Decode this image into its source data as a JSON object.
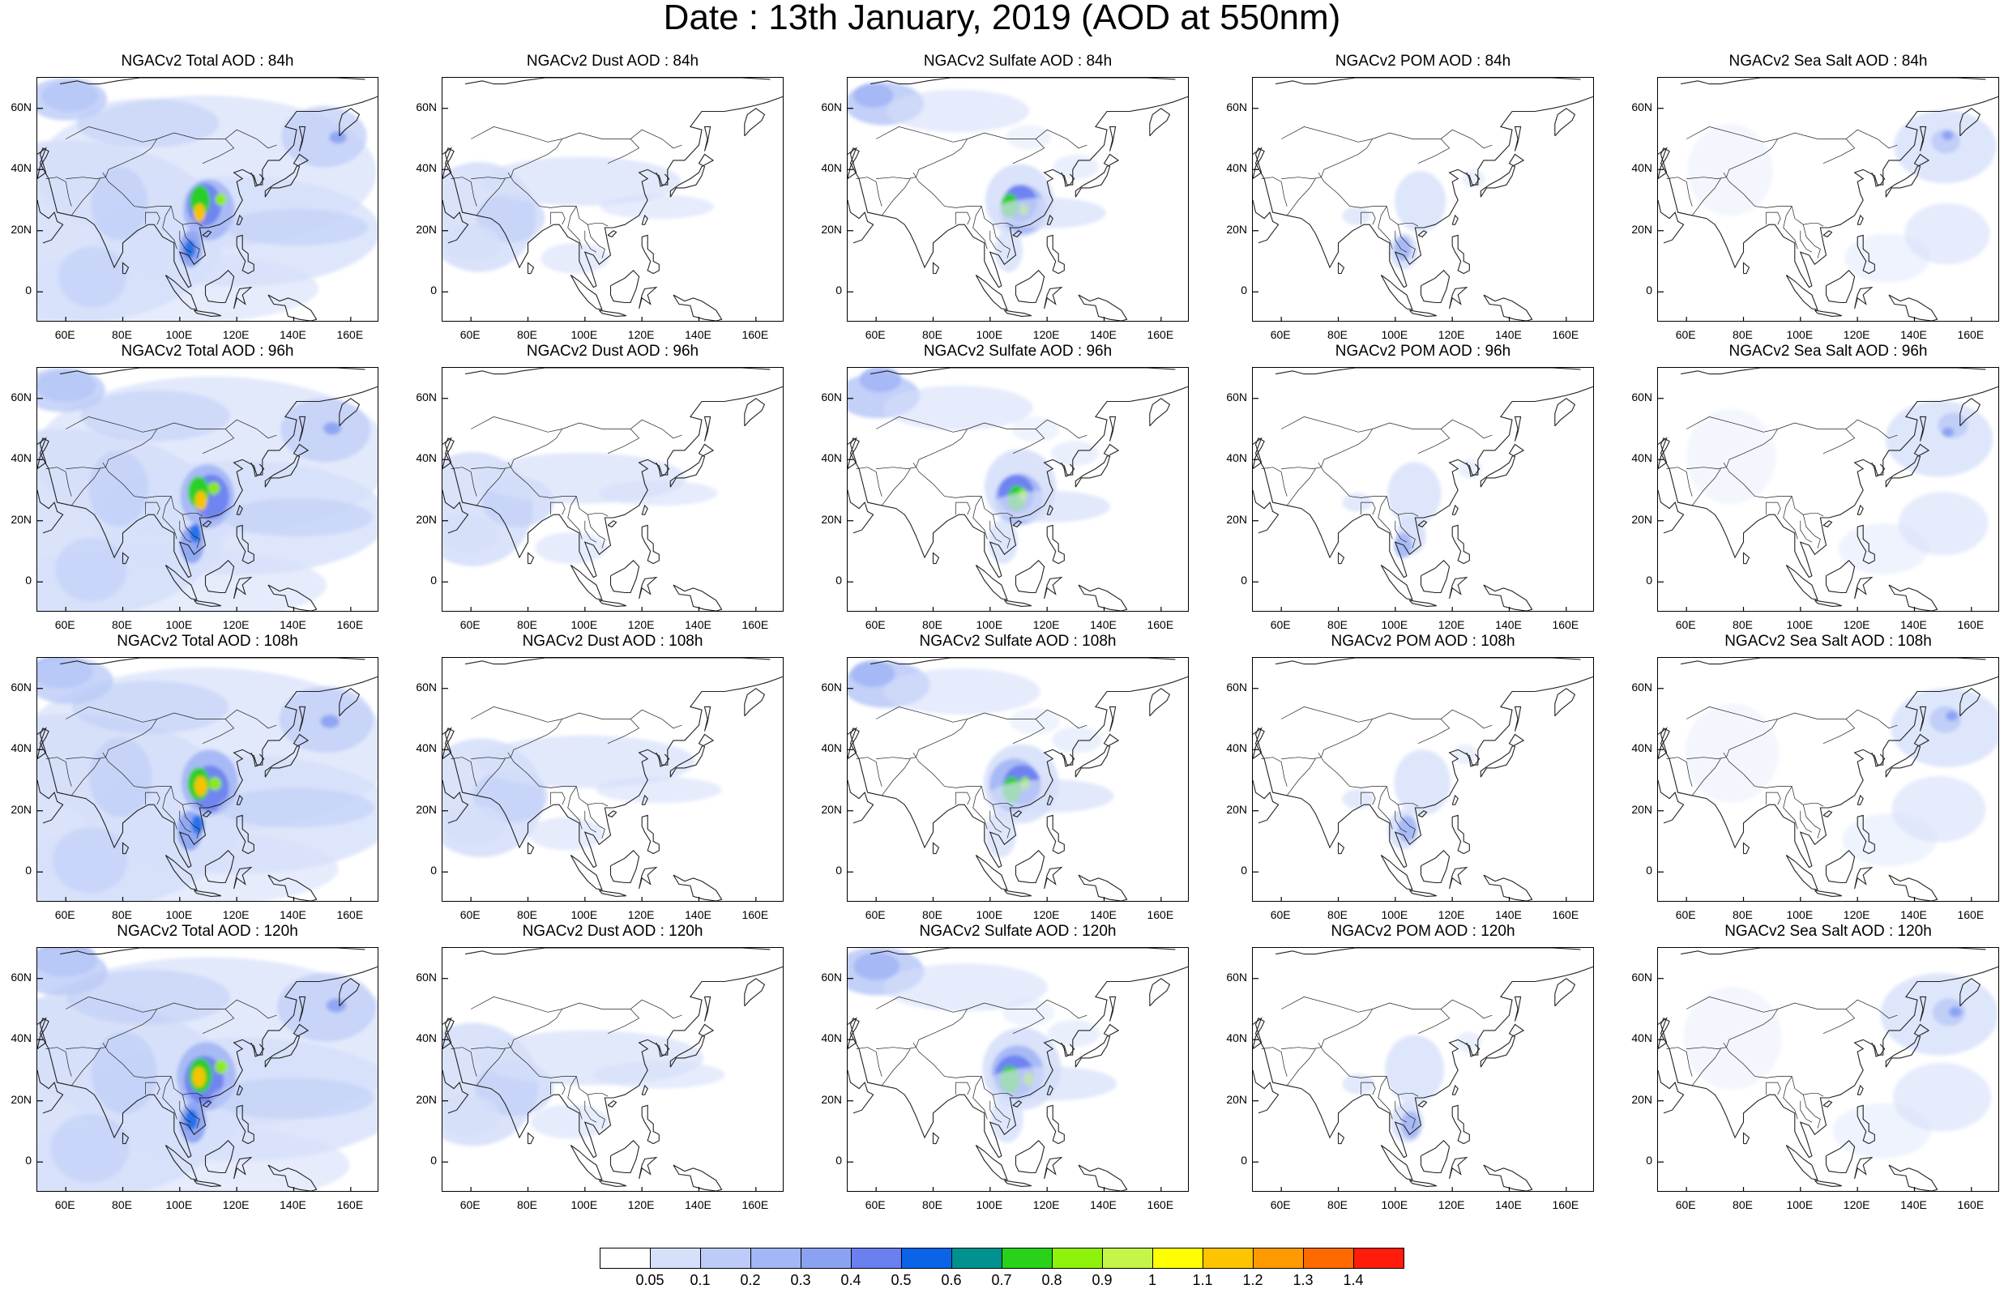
{
  "title": "Date : 13th January, 2019 (AOD at 550nm)",
  "map": {
    "lat_ticks": [
      "0",
      "20N",
      "40N",
      "60N"
    ],
    "lon_ticks": [
      "60E",
      "80E",
      "100E",
      "120E",
      "140E",
      "160E"
    ]
  },
  "panels": [
    [
      {
        "title": "NGACv2 Total AOD : 84h",
        "kind": "total"
      },
      {
        "title": "NGACv2 Dust AOD : 84h",
        "kind": "dust"
      },
      {
        "title": "NGACv2 Sulfate AOD : 84h",
        "kind": "sulfate"
      },
      {
        "title": "NGACv2 POM AOD : 84h",
        "kind": "pom"
      },
      {
        "title": "NGACv2 Sea Salt AOD : 84h",
        "kind": "seasalt"
      }
    ],
    [
      {
        "title": "NGACv2 Total AOD : 96h",
        "kind": "total"
      },
      {
        "title": "NGACv2 Dust AOD : 96h",
        "kind": "dust"
      },
      {
        "title": "NGACv2 Sulfate AOD : 96h",
        "kind": "sulfate"
      },
      {
        "title": "NGACv2 POM AOD : 96h",
        "kind": "pom"
      },
      {
        "title": "NGACv2 Sea Salt AOD : 96h",
        "kind": "seasalt"
      }
    ],
    [
      {
        "title": "NGACv2 Total AOD : 108h",
        "kind": "total"
      },
      {
        "title": "NGACv2 Dust AOD : 108h",
        "kind": "dust"
      },
      {
        "title": "NGACv2 Sulfate AOD : 108h",
        "kind": "sulfate"
      },
      {
        "title": "NGACv2 POM AOD : 108h",
        "kind": "pom"
      },
      {
        "title": "NGACv2 Sea Salt AOD : 108h",
        "kind": "seasalt"
      }
    ],
    [
      {
        "title": "NGACv2 Total AOD : 120h",
        "kind": "total"
      },
      {
        "title": "NGACv2 Dust AOD : 120h",
        "kind": "dust"
      },
      {
        "title": "NGACv2 Sulfate AOD : 120h",
        "kind": "sulfate"
      },
      {
        "title": "NGACv2 POM AOD : 120h",
        "kind": "pom"
      },
      {
        "title": "NGACv2 Sea Salt  AOD : 120h",
        "kind": "seasalt"
      }
    ]
  ],
  "colorbar": {
    "labels": [
      "0.05",
      "0.1",
      "0.2",
      "0.3",
      "0.4",
      "0.5",
      "0.6",
      "0.7",
      "0.8",
      "0.9",
      "1",
      "1.1",
      "1.2",
      "1.3",
      "1.4"
    ],
    "colors": [
      "#ffffff",
      "#d6e0fa",
      "#bccbf7",
      "#a3b6f5",
      "#8aa2f2",
      "#6a7ff0",
      "#0a64e8",
      "#00928e",
      "#28d21a",
      "#8ff20a",
      "#c6f54a",
      "#ffff00",
      "#ffc400",
      "#ff9a00",
      "#ff6a00",
      "#ff1c0a"
    ]
  }
}
